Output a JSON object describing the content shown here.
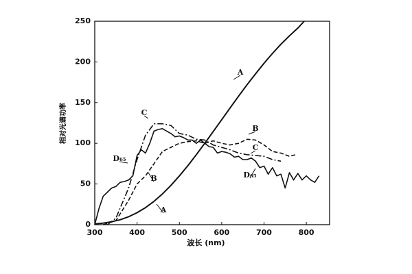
{
  "chart_data": {
    "type": "line",
    "xlabel": "波长 (nm)",
    "ylabel": "相对光谱功率",
    "xlim": [
      300,
      855
    ],
    "ylim": [
      0,
      250
    ],
    "xticks": [
      300,
      400,
      500,
      600,
      700,
      800
    ],
    "yticks": [
      0,
      50,
      100,
      150,
      200,
      250
    ],
    "series": [
      {
        "name": "A",
        "color": "#111111",
        "dash": "none",
        "x": [
          300,
          320,
          340,
          360,
          380,
          400,
          420,
          440,
          460,
          480,
          500,
          520,
          540,
          560,
          580,
          600,
          620,
          640,
          660,
          680,
          700,
          720,
          740,
          760,
          780,
          795
        ],
        "values": [
          0.9,
          1.9,
          3.6,
          6.1,
          9.8,
          14.7,
          21,
          28.7,
          37.8,
          48.2,
          59.9,
          72.5,
          86,
          100,
          114.4,
          129,
          143.6,
          158,
          172,
          185.4,
          198.3,
          210.4,
          221.7,
          232.1,
          241.7,
          250
        ]
      },
      {
        "name": "B",
        "color": "#111111",
        "dash": "6 3",
        "x": [
          320,
          350,
          380,
          400,
          420,
          440,
          460,
          480,
          500,
          520,
          540,
          560,
          580,
          600,
          620,
          640,
          660,
          680,
          700,
          720,
          740,
          760,
          775
        ],
        "values": [
          0,
          5,
          30,
          50,
          60,
          75,
          90,
          95,
          100,
          102,
          103,
          100,
          103,
          100,
          98,
          100,
          105,
          104,
          98,
          90,
          88,
          84,
          86
        ]
      },
      {
        "name": "C",
        "color": "#111111",
        "dash": "9 3 2 3",
        "x": [
          330,
          350,
          380,
          400,
          420,
          440,
          460,
          480,
          500,
          520,
          540,
          560,
          580,
          600,
          620,
          640,
          660,
          680,
          700,
          720,
          740
        ],
        "values": [
          0,
          8,
          45,
          80,
          110,
          124,
          124,
          122,
          112,
          110,
          105,
          104,
          98,
          95,
          92,
          88,
          86,
          85,
          84,
          80,
          78
        ]
      },
      {
        "name": "D₆₅",
        "color": "#111111",
        "dash": "none",
        "x": [
          300,
          310,
          320,
          330,
          340,
          350,
          360,
          370,
          380,
          390,
          400,
          410,
          420,
          430,
          440,
          450,
          460,
          470,
          480,
          490,
          500,
          510,
          520,
          530,
          540,
          550,
          560,
          570,
          580,
          590,
          600,
          610,
          620,
          630,
          640,
          650,
          660,
          670,
          680,
          690,
          700,
          710,
          720,
          730,
          740,
          750,
          760,
          770,
          780,
          790,
          800,
          810,
          820,
          830
        ],
        "values": [
          0,
          20,
          35,
          40,
          45,
          47,
          52,
          53,
          55,
          60,
          85,
          92,
          88,
          100,
          115,
          117,
          118,
          115,
          112,
          108,
          109,
          107,
          104,
          104,
          100,
          104,
          100,
          96,
          95,
          88,
          90,
          89,
          87,
          83,
          84,
          80,
          80,
          82,
          78,
          70,
          72,
          62,
          70,
          60,
          62,
          45,
          64,
          55,
          63,
          55,
          60,
          55,
          52,
          60
        ]
      }
    ]
  }
}
